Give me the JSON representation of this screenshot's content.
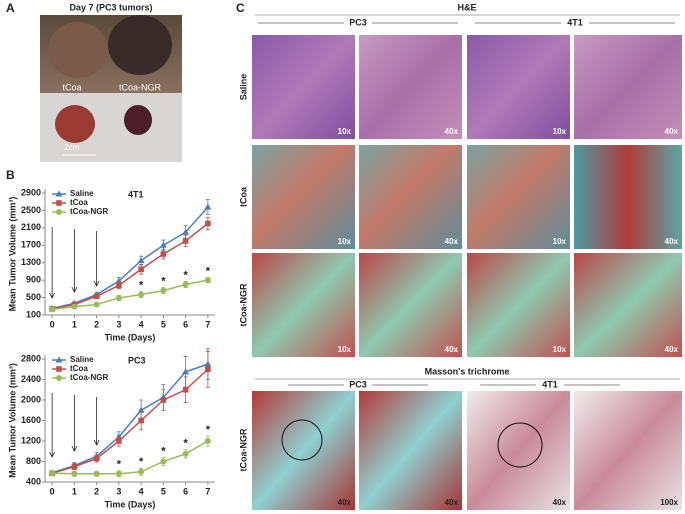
{
  "panels": {
    "a": "A",
    "b": "B",
    "c": "C"
  },
  "photo": {
    "title": "Day 7 (PC3 tumors)",
    "labels": [
      "tCoa",
      "tCoa-NGR"
    ],
    "scale": "2cm"
  },
  "chart_data": [
    {
      "type": "line",
      "title": "4T1",
      "xlabel": "Time (Days)",
      "ylabel": "Mean Tumor Volume (mm³)",
      "x": [
        0,
        1,
        2,
        3,
        4,
        5,
        6,
        7
      ],
      "xlim": [
        -0.32,
        7.32
      ],
      "xticks": [
        0,
        1,
        2,
        3,
        4,
        5,
        6,
        7
      ],
      "ylim": [
        100,
        2900
      ],
      "yticks": [
        100,
        500,
        900,
        1300,
        1700,
        2100,
        2500,
        2900
      ],
      "series": [
        {
          "name": "Saline",
          "color": "#4a7ebb",
          "marker": "triangle",
          "values": [
            250,
            370,
            570,
            880,
            1350,
            1700,
            2000,
            2580
          ],
          "errors": [
            20,
            30,
            50,
            80,
            100,
            120,
            150,
            170
          ]
        },
        {
          "name": "tCoa",
          "color": "#c0504d",
          "marker": "square",
          "values": [
            240,
            340,
            530,
            780,
            1150,
            1500,
            1800,
            2200
          ],
          "errors": [
            20,
            30,
            50,
            70,
            110,
            110,
            130,
            140
          ]
        },
        {
          "name": "tCoa-NGR",
          "color": "#9bbb59",
          "marker": "circle",
          "values": [
            230,
            290,
            340,
            490,
            570,
            660,
            800,
            900
          ],
          "errors": [
            20,
            30,
            40,
            60,
            70,
            70,
            70,
            60
          ]
        }
      ],
      "annotations": [
        {
          "text": "*",
          "x": 4
        },
        {
          "text": "*",
          "x": 5
        },
        {
          "text": "*",
          "x": 6
        },
        {
          "text": "*",
          "x": 7
        }
      ]
    },
    {
      "type": "line",
      "title": "PC3",
      "xlabel": "Time (Days)",
      "ylabel": "Mean Tumor Volume (mm³)",
      "x": [
        0,
        1,
        2,
        3,
        4,
        5,
        6,
        7
      ],
      "xlim": [
        -0.32,
        7.32
      ],
      "xticks": [
        0,
        1,
        2,
        3,
        4,
        5,
        6,
        7
      ],
      "ylim": [
        400,
        2800
      ],
      "yticks": [
        400,
        800,
        1200,
        1600,
        2000,
        2400,
        2800
      ],
      "series": [
        {
          "name": "Saline",
          "color": "#4a7ebb",
          "marker": "triangle",
          "values": [
            580,
            720,
            900,
            1280,
            1800,
            2050,
            2550,
            2700
          ],
          "errors": [
            40,
            60,
            80,
            100,
            200,
            250,
            300,
            300
          ]
        },
        {
          "name": "tCoa",
          "color": "#c0504d",
          "marker": "square",
          "values": [
            570,
            700,
            860,
            1200,
            1600,
            2000,
            2200,
            2600
          ],
          "errors": [
            40,
            60,
            70,
            100,
            180,
            200,
            250,
            350
          ]
        },
        {
          "name": "tCoa-NGR",
          "color": "#9bbb59",
          "marker": "circle",
          "values": [
            570,
            560,
            560,
            560,
            600,
            800,
            950,
            1200
          ],
          "errors": [
            40,
            50,
            50,
            60,
            70,
            80,
            80,
            100
          ]
        }
      ],
      "annotations": [
        {
          "text": "*",
          "x": 3
        },
        {
          "text": "*",
          "x": 4
        },
        {
          "text": "*",
          "x": 5
        },
        {
          "text": "*",
          "x": 6
        },
        {
          "text": "*",
          "x": 7
        }
      ]
    }
  ],
  "micrographs": {
    "he": {
      "title": "H&E",
      "columns": [
        "PC3",
        "4T1"
      ],
      "rows": [
        {
          "label": "Saline",
          "mags": [
            "10x",
            "40x",
            "10x",
            "40x"
          ]
        },
        {
          "label": "tCoa",
          "mags": [
            "10x",
            "40x",
            "10x",
            "40x"
          ]
        },
        {
          "label": "tCoa-NGR",
          "mags": [
            "10x",
            "40x",
            "10x",
            "40x"
          ]
        }
      ]
    },
    "masson": {
      "title": "Masson's trichrome",
      "columns": [
        "PC3",
        "4T1"
      ],
      "row": "tCoa-NGR",
      "mags": [
        "40x",
        "40x",
        "40x",
        "100x"
      ]
    }
  }
}
